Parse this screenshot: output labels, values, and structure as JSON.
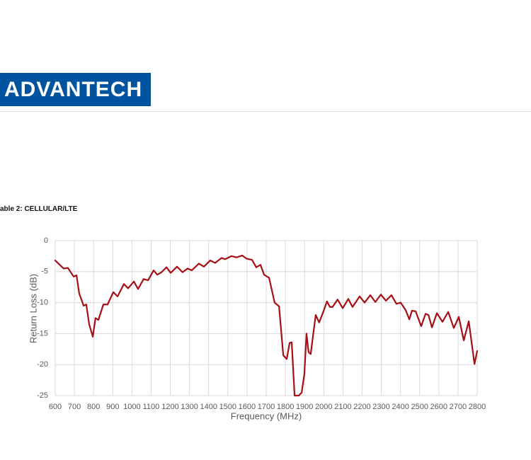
{
  "header": {
    "logo": "ADVANTECH"
  },
  "caption": "able 2: CELLULAR/LTE",
  "chart_data": {
    "type": "line",
    "xlabel": "Frequency (MHz)",
    "ylabel": "Return Loss (dB)",
    "x": [
      600,
      644,
      666,
      696,
      711,
      725,
      748,
      762,
      777,
      796,
      810,
      825,
      851,
      873,
      903,
      925,
      958,
      980,
      1010,
      1032,
      1061,
      1084,
      1113,
      1132,
      1154,
      1180,
      1202,
      1235,
      1264,
      1290,
      1312,
      1349,
      1375,
      1408,
      1434,
      1467,
      1486,
      1519,
      1545,
      1575,
      1597,
      1626,
      1648,
      1670,
      1689,
      1715,
      1744,
      1767,
      1789,
      1807,
      1822,
      1833,
      1848,
      1870,
      1885,
      1899,
      1910,
      1921,
      1932,
      1958,
      1976,
      1995,
      2017,
      2032,
      2046,
      2072,
      2099,
      2128,
      2150,
      2187,
      2213,
      2243,
      2269,
      2298,
      2324,
      2353,
      2379,
      2401,
      2427,
      2446,
      2460,
      2479,
      2508,
      2531,
      2546,
      2564,
      2590,
      2619,
      2649,
      2678,
      2704,
      2730,
      2756,
      2786,
      2800
    ],
    "series": [
      {
        "name": "Return Loss",
        "color": "#a50f15",
        "values": [
          -3.2,
          -4.5,
          -4.4,
          -5.8,
          -5.6,
          -8.5,
          -10.5,
          -10.3,
          -13.5,
          -15.5,
          -12.5,
          -12.8,
          -10.3,
          -10.3,
          -8.3,
          -9,
          -7,
          -7.7,
          -6.6,
          -7.8,
          -6.2,
          -6.4,
          -4.8,
          -5.5,
          -5.1,
          -4.3,
          -5.2,
          -4.2,
          -5.1,
          -4.5,
          -4.8,
          -3.7,
          -4.2,
          -3.2,
          -3.6,
          -2.8,
          -3,
          -2.5,
          -2.7,
          -2.4,
          -2.9,
          -3.1,
          -4.3,
          -3.9,
          -5.5,
          -6,
          -10,
          -10.6,
          -18.5,
          -19.1,
          -16.5,
          -16.4,
          -25,
          -25,
          -24.5,
          -21.5,
          -15,
          -18,
          -18.3,
          -12,
          -13.2,
          -11.7,
          -9.8,
          -10.7,
          -10.7,
          -9.5,
          -10.9,
          -9.4,
          -10.7,
          -9,
          -10,
          -8.8,
          -9.9,
          -8.7,
          -9.7,
          -8.8,
          -10.2,
          -10,
          -11.2,
          -12.7,
          -11.3,
          -11.4,
          -13.8,
          -11.8,
          -12,
          -14,
          -11.7,
          -13.1,
          -11.5,
          -14.1,
          -12.3,
          -16.1,
          -13,
          -19.9,
          -17.8
        ]
      }
    ],
    "xlim": [
      600,
      2800
    ],
    "xticks": [
      600,
      700,
      800,
      900,
      1000,
      1100,
      1200,
      1300,
      1400,
      1500,
      1600,
      1700,
      1800,
      1900,
      2000,
      2100,
      2200,
      2300,
      2400,
      2500,
      2600,
      2700,
      2800
    ],
    "ylim": [
      -25,
      0
    ],
    "yticks": [
      0,
      -5,
      -10,
      -15,
      -20,
      -25
    ],
    "grid": true
  }
}
